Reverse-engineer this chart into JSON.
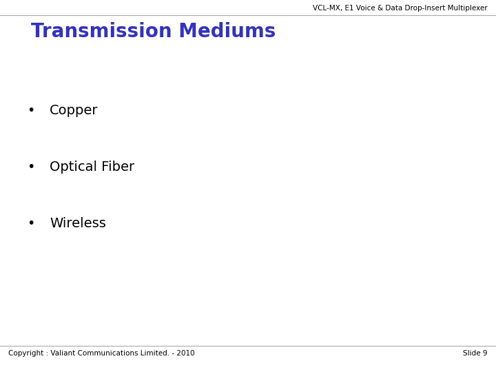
{
  "background_color": "#ffffff",
  "header_text": "VCL-MX, E1 Voice & Data Drop-Insert Multiplexer",
  "header_color": "#000000",
  "header_fontsize": 7.5,
  "title_text": "Transmission Mediums",
  "title_color": "#3333bb",
  "title_fontsize": 20,
  "title_bold": true,
  "bullets": [
    "Copper",
    "Optical Fiber",
    "Wireless"
  ],
  "bullet_color": "#000000",
  "bullet_fontsize": 14,
  "footer_left": "Copyright : Valiant Communications Limited. - 2010",
  "footer_right": "Slide 9",
  "footer_color": "#000000",
  "footer_fontsize": 7.5,
  "line_color": "#aaaaaa",
  "line_width": 0.8
}
